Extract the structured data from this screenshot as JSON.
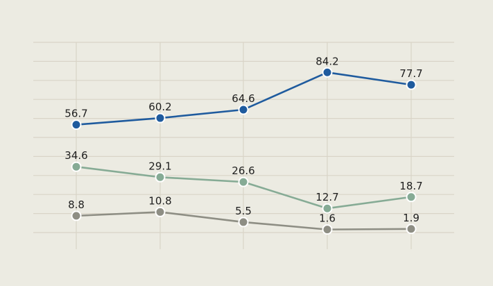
{
  "chart_data": {
    "type": "line",
    "title": "",
    "xlabel": "",
    "ylabel": "",
    "categories": [
      "",
      "",
      "",
      "",
      ""
    ],
    "ylim": [
      0,
      100
    ],
    "grid": true,
    "series": [
      {
        "values": [
          56.7,
          60.2,
          64.6,
          84.2,
          77.7
        ],
        "labels": [
          "56.7",
          "60.2",
          "64.6",
          "84.2",
          "77.7"
        ],
        "color": "#1f5b9e"
      },
      {
        "values": [
          34.6,
          29.1,
          26.6,
          12.7,
          18.7
        ],
        "labels": [
          "34.6",
          "29.1",
          "26.6",
          "12.7",
          "18.7"
        ],
        "color": "#86ab95"
      },
      {
        "values": [
          8.8,
          10.8,
          5.5,
          1.6,
          1.9
        ],
        "labels": [
          "8.8",
          "10.8",
          "5.5",
          "1.6",
          "1.9"
        ],
        "color": "#8e8e84"
      }
    ]
  },
  "colors": {
    "background": "#ecebe2",
    "grid": "#d9d4c7"
  }
}
